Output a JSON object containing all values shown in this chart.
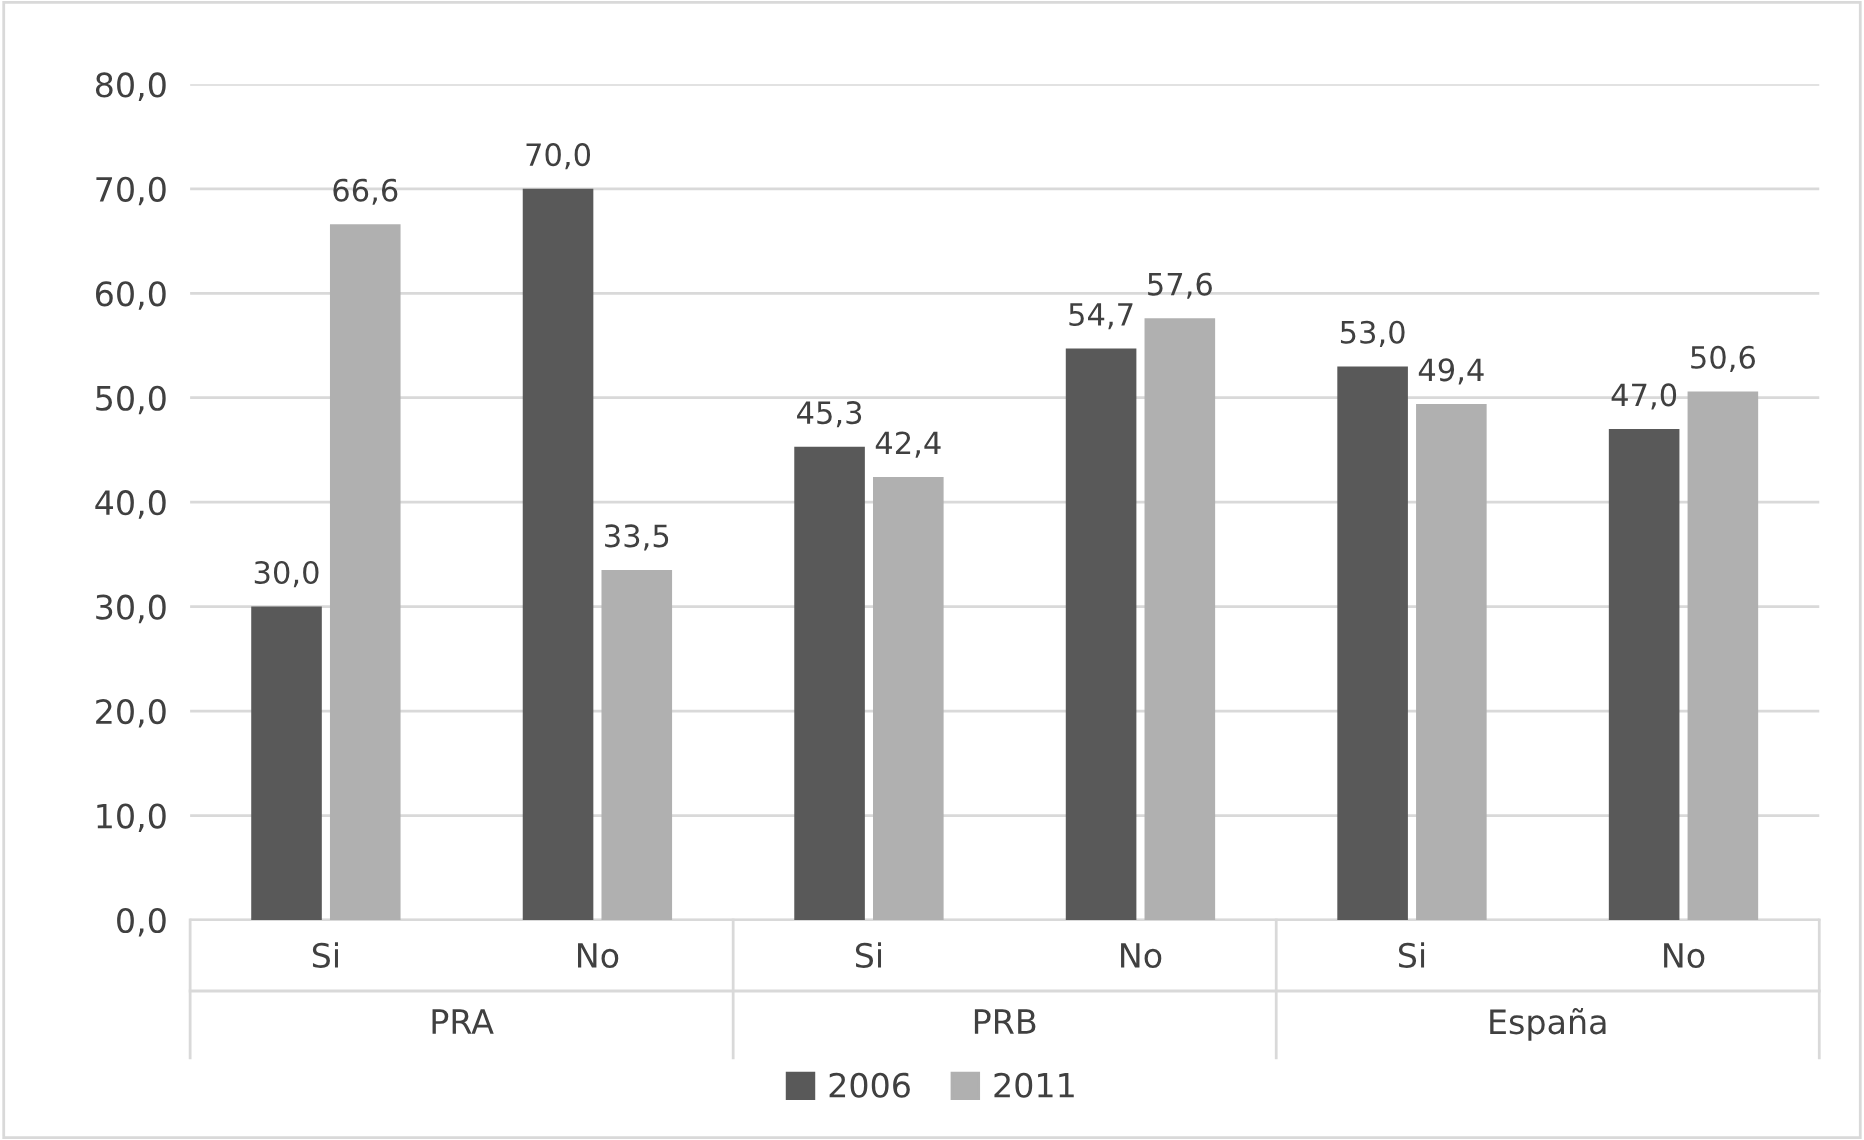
{
  "chart_data": {
    "type": "bar",
    "categories": [
      "Si",
      "No",
      "Si",
      "No",
      "Si",
      "No"
    ],
    "annotations": [
      "PRA",
      "PRB",
      "España"
    ],
    "series": [
      {
        "name": "2006",
        "color": "#595959",
        "values": [
          30.0,
          70.0,
          45.3,
          54.7,
          53.0,
          47.0
        ],
        "value_labels": [
          "30,0",
          "70,0",
          "45,3",
          "54,7",
          "53,0",
          "47,0"
        ]
      },
      {
        "name": "2011",
        "color": "#b0b0b0",
        "values": [
          66.6,
          33.5,
          42.4,
          57.6,
          49.4,
          50.6
        ],
        "value_labels": [
          "66,6",
          "33,5",
          "42,4",
          "57,6",
          "49,4",
          "50,6"
        ]
      }
    ],
    "ylim": [
      0,
      80
    ],
    "yticks": [
      {
        "value": 0,
        "label": "0,0"
      },
      {
        "value": 10,
        "label": "10,0"
      },
      {
        "value": 20,
        "label": "20,0"
      },
      {
        "value": 30,
        "label": "30,0"
      },
      {
        "value": 40,
        "label": "40,0"
      },
      {
        "value": 50,
        "label": "50,0"
      },
      {
        "value": 60,
        "label": "60,0"
      },
      {
        "value": 70,
        "label": "70,0"
      },
      {
        "value": 80,
        "label": "80,0"
      }
    ],
    "grid": "y",
    "legend": "bottom"
  }
}
